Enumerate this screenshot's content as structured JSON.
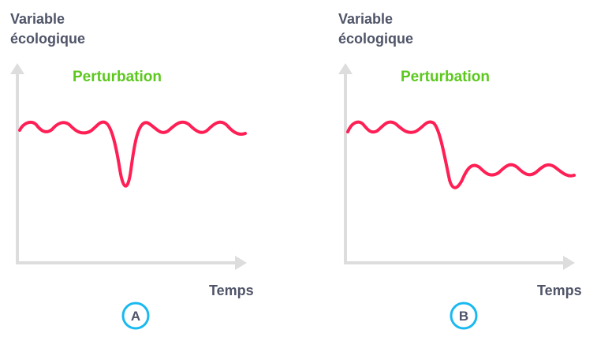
{
  "colors": {
    "curve": "#ff1f55",
    "axis": "#dddddd",
    "perturbation": "#5cc81e",
    "badge": "#1ab9f0",
    "text": "#4f5468"
  },
  "panels": [
    {
      "y_label_line1": "Variable",
      "y_label_line2": "écologique",
      "perturbation_label": "Perturbation",
      "x_label": "Temps",
      "badge": "A"
    },
    {
      "y_label_line1": "Variable",
      "y_label_line2": "écologique",
      "perturbation_label": "Perturbation",
      "x_label": "Temps",
      "badge": "B"
    }
  ]
}
